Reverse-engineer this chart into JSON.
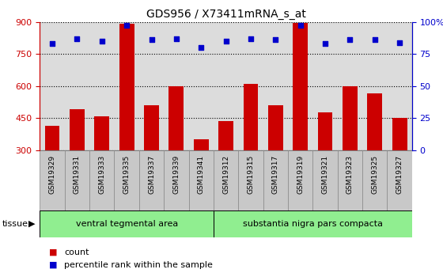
{
  "title": "GDS956 / X73411mRNA_s_at",
  "categories": [
    "GSM19329",
    "GSM19331",
    "GSM19333",
    "GSM19335",
    "GSM19337",
    "GSM19339",
    "GSM19341",
    "GSM19312",
    "GSM19315",
    "GSM19317",
    "GSM19319",
    "GSM19321",
    "GSM19323",
    "GSM19325",
    "GSM19327"
  ],
  "counts": [
    415,
    490,
    460,
    890,
    510,
    600,
    350,
    435,
    610,
    510,
    895,
    475,
    600,
    565,
    450
  ],
  "percentiles": [
    83,
    87,
    85,
    97,
    86,
    87,
    80,
    85,
    87,
    86,
    97,
    83,
    86,
    86,
    84
  ],
  "group_labels": [
    "ventral tegmental area",
    "substantia nigra pars compacta"
  ],
  "bar_color": "#CC0000",
  "dot_color": "#0000CC",
  "ylim_left": [
    300,
    900
  ],
  "yticks_left": [
    300,
    450,
    600,
    750,
    900
  ],
  "ylim_right": [
    0,
    100
  ],
  "yticks_right": [
    0,
    25,
    50,
    75,
    100
  ],
  "ylabel_left_color": "#CC0000",
  "ylabel_right_color": "#0000CC",
  "plot_bg_color": "#DCDCDC",
  "cell_bg_color": "#C8C8C8",
  "tissue_color": "#90EE90",
  "legend_count_label": "count",
  "legend_percentile_label": "percentile rank within the sample",
  "tissue_label": "tissue",
  "split_index": 7,
  "fig_bg_color": "#FFFFFF"
}
